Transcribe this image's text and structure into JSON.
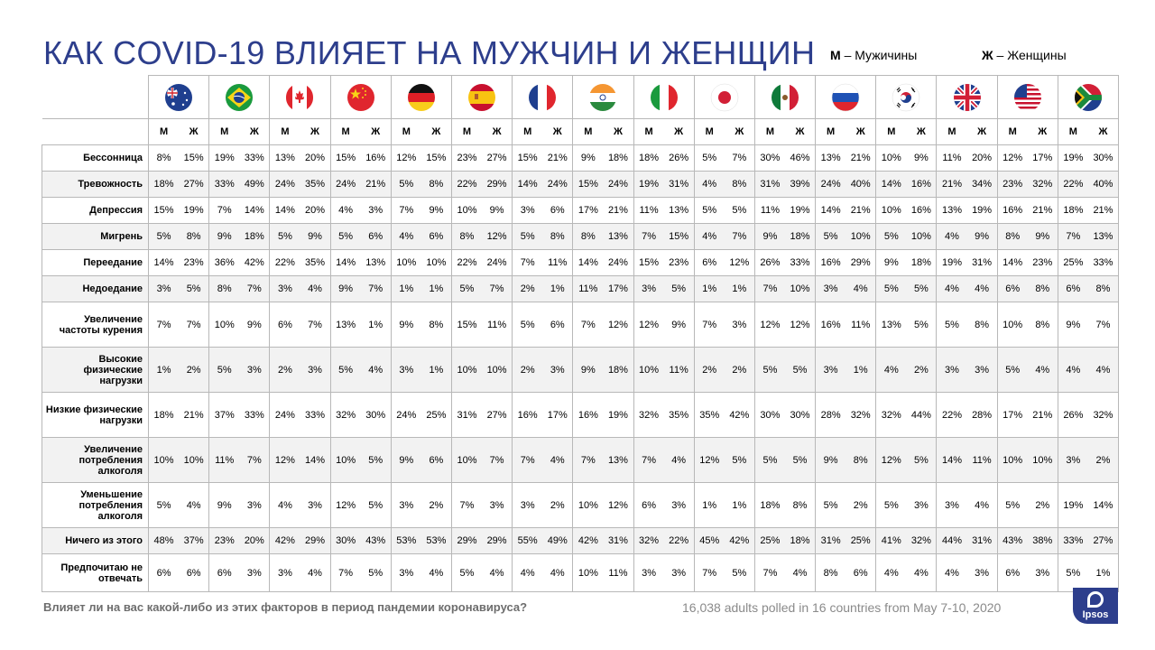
{
  "title": "КАК COVID-19 ВЛИЯЕТ НА МУЖЧИН И ЖЕНЩИН",
  "legend": {
    "m_key": "М",
    "m_text": "– Мужичины",
    "f_key": "Ж",
    "f_text": "– Женщины"
  },
  "footer": {
    "question": "Влияет ли на вас какой-либо из этих факторов в период пандемии коронавируса?",
    "note": "16,038 adults polled in 16 countries from May 7-10, 2020",
    "logo": "Ipsos"
  },
  "colors": {
    "title": "#2d3e8c",
    "logo_bg": "#2d3e8c",
    "grid": "#b8b8b8",
    "stripe": "#f2f2f2"
  },
  "chart_data": {
    "type": "table",
    "countries": [
      {
        "flag": "australia-flag-icon"
      },
      {
        "flag": "brazil-flag-icon"
      },
      {
        "flag": "canada-flag-icon"
      },
      {
        "flag": "china-flag-icon"
      },
      {
        "flag": "germany-flag-icon"
      },
      {
        "flag": "spain-flag-icon"
      },
      {
        "flag": "france-flag-icon"
      },
      {
        "flag": "india-flag-icon"
      },
      {
        "flag": "italy-flag-icon"
      },
      {
        "flag": "japan-flag-icon"
      },
      {
        "flag": "mexico-flag-icon"
      },
      {
        "flag": "russia-flag-icon"
      },
      {
        "flag": "south-korea-flag-icon"
      },
      {
        "flag": "uk-flag-icon"
      },
      {
        "flag": "usa-flag-icon"
      },
      {
        "flag": "south-africa-flag-icon"
      }
    ],
    "sub_headers": [
      "М",
      "Ж"
    ],
    "rows": [
      {
        "label": "Бессонница",
        "values": [
          "8%",
          "15%",
          "19%",
          "33%",
          "13%",
          "20%",
          "15%",
          "16%",
          "12%",
          "15%",
          "23%",
          "27%",
          "15%",
          "21%",
          "9%",
          "18%",
          "18%",
          "26%",
          "5%",
          "7%",
          "30%",
          "46%",
          "13%",
          "21%",
          "10%",
          "9%",
          "11%",
          "20%",
          "12%",
          "17%",
          "19%",
          "30%"
        ]
      },
      {
        "label": "Тревожность",
        "values": [
          "18%",
          "27%",
          "33%",
          "49%",
          "24%",
          "35%",
          "24%",
          "21%",
          "5%",
          "8%",
          "22%",
          "29%",
          "14%",
          "24%",
          "15%",
          "24%",
          "19%",
          "31%",
          "4%",
          "8%",
          "31%",
          "39%",
          "24%",
          "40%",
          "14%",
          "16%",
          "21%",
          "34%",
          "23%",
          "32%",
          "22%",
          "40%"
        ]
      },
      {
        "label": "Депрессия",
        "values": [
          "15%",
          "19%",
          "7%",
          "14%",
          "14%",
          "20%",
          "4%",
          "3%",
          "7%",
          "9%",
          "10%",
          "9%",
          "3%",
          "6%",
          "17%",
          "21%",
          "11%",
          "13%",
          "5%",
          "5%",
          "11%",
          "19%",
          "14%",
          "21%",
          "10%",
          "16%",
          "13%",
          "19%",
          "16%",
          "21%",
          "18%",
          "21%"
        ]
      },
      {
        "label": "Мигрень",
        "values": [
          "5%",
          "8%",
          "9%",
          "18%",
          "5%",
          "9%",
          "5%",
          "6%",
          "4%",
          "6%",
          "8%",
          "12%",
          "5%",
          "8%",
          "8%",
          "13%",
          "7%",
          "15%",
          "4%",
          "7%",
          "9%",
          "18%",
          "5%",
          "10%",
          "5%",
          "10%",
          "4%",
          "9%",
          "8%",
          "9%",
          "7%",
          "13%"
        ]
      },
      {
        "label": "Переедание",
        "values": [
          "14%",
          "23%",
          "36%",
          "42%",
          "22%",
          "35%",
          "14%",
          "13%",
          "10%",
          "10%",
          "22%",
          "24%",
          "7%",
          "11%",
          "14%",
          "24%",
          "15%",
          "23%",
          "6%",
          "12%",
          "26%",
          "33%",
          "16%",
          "29%",
          "9%",
          "18%",
          "19%",
          "31%",
          "14%",
          "23%",
          "25%",
          "33%"
        ]
      },
      {
        "label": "Недоедание",
        "values": [
          "3%",
          "5%",
          "8%",
          "7%",
          "3%",
          "4%",
          "9%",
          "7%",
          "1%",
          "1%",
          "5%",
          "7%",
          "2%",
          "1%",
          "11%",
          "17%",
          "3%",
          "5%",
          "1%",
          "1%",
          "7%",
          "10%",
          "3%",
          "4%",
          "5%",
          "5%",
          "4%",
          "4%",
          "6%",
          "8%",
          "6%",
          "8%"
        ]
      },
      {
        "label": "Увеличение частоты курения",
        "values": [
          "7%",
          "7%",
          "10%",
          "9%",
          "6%",
          "7%",
          "13%",
          "1%",
          "9%",
          "8%",
          "15%",
          "11%",
          "5%",
          "6%",
          "7%",
          "12%",
          "12%",
          "9%",
          "7%",
          "3%",
          "12%",
          "12%",
          "16%",
          "11%",
          "13%",
          "5%",
          "5%",
          "8%",
          "10%",
          "8%",
          "9%",
          "7%"
        ]
      },
      {
        "label": "Высокие физические нагрузки",
        "values": [
          "1%",
          "2%",
          "5%",
          "3%",
          "2%",
          "3%",
          "5%",
          "4%",
          "3%",
          "1%",
          "10%",
          "10%",
          "2%",
          "3%",
          "9%",
          "18%",
          "10%",
          "11%",
          "2%",
          "2%",
          "5%",
          "5%",
          "3%",
          "1%",
          "4%",
          "2%",
          "3%",
          "3%",
          "5%",
          "4%",
          "4%",
          "4%"
        ]
      },
      {
        "label": "Низкие физические нагрузки",
        "values": [
          "18%",
          "21%",
          "37%",
          "33%",
          "24%",
          "33%",
          "32%",
          "30%",
          "24%",
          "25%",
          "31%",
          "27%",
          "16%",
          "17%",
          "16%",
          "19%",
          "32%",
          "35%",
          "35%",
          "42%",
          "30%",
          "30%",
          "28%",
          "32%",
          "32%",
          "44%",
          "22%",
          "28%",
          "17%",
          "21%",
          "26%",
          "32%"
        ]
      },
      {
        "label": "Увеличение потребления алкоголя",
        "values": [
          "10%",
          "10%",
          "11%",
          "7%",
          "12%",
          "14%",
          "10%",
          "5%",
          "9%",
          "6%",
          "10%",
          "7%",
          "7%",
          "4%",
          "7%",
          "13%",
          "7%",
          "4%",
          "12%",
          "5%",
          "5%",
          "5%",
          "9%",
          "8%",
          "12%",
          "5%",
          "14%",
          "11%",
          "10%",
          "10%",
          "3%",
          "2%"
        ]
      },
      {
        "label": "Уменьшение потребления алкоголя",
        "values": [
          "5%",
          "4%",
          "9%",
          "3%",
          "4%",
          "3%",
          "12%",
          "5%",
          "3%",
          "2%",
          "7%",
          "3%",
          "3%",
          "2%",
          "10%",
          "12%",
          "6%",
          "3%",
          "1%",
          "1%",
          "18%",
          "8%",
          "5%",
          "2%",
          "5%",
          "3%",
          "3%",
          "4%",
          "5%",
          "2%",
          "19%",
          "14%"
        ]
      },
      {
        "label": "Ничего из этого",
        "values": [
          "48%",
          "37%",
          "23%",
          "20%",
          "42%",
          "29%",
          "30%",
          "43%",
          "53%",
          "53%",
          "29%",
          "29%",
          "55%",
          "49%",
          "42%",
          "31%",
          "32%",
          "22%",
          "45%",
          "42%",
          "25%",
          "18%",
          "31%",
          "25%",
          "41%",
          "32%",
          "44%",
          "31%",
          "43%",
          "38%",
          "33%",
          "27%"
        ]
      },
      {
        "label": "Предпочитаю не отвечать",
        "values": [
          "6%",
          "6%",
          "6%",
          "3%",
          "3%",
          "4%",
          "7%",
          "5%",
          "3%",
          "4%",
          "5%",
          "4%",
          "4%",
          "4%",
          "10%",
          "11%",
          "3%",
          "3%",
          "7%",
          "5%",
          "7%",
          "4%",
          "8%",
          "6%",
          "4%",
          "4%",
          "4%",
          "3%",
          "6%",
          "3%",
          "5%",
          "1%"
        ]
      }
    ]
  }
}
